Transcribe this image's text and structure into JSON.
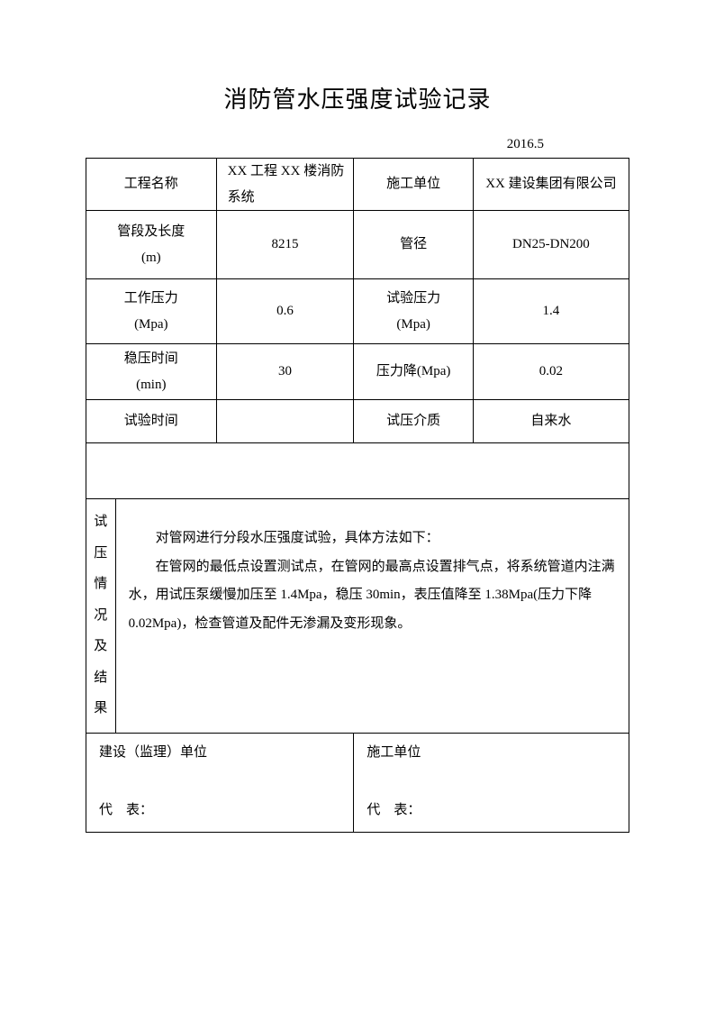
{
  "title": "消防管水压强度试验记录",
  "date": "2016.5",
  "labels": {
    "project_name": "工程名称",
    "contractor": "施工单位",
    "pipe_length": "管段及长度",
    "pipe_length_unit": "(m)",
    "pipe_diameter": "管径",
    "work_pressure": "工作压力",
    "work_pressure_unit": "(Mpa)",
    "test_pressure": "试验压力",
    "test_pressure_unit": "(Mpa)",
    "stable_time": "稳压时间",
    "stable_time_unit": "(min)",
    "pressure_drop": "压力降(Mpa)",
    "test_time": "试验时间",
    "test_medium": "试压介质",
    "result_label_1": "试",
    "result_label_2": "压",
    "result_label_3": "情",
    "result_label_4": "况",
    "result_label_5": "及",
    "result_label_6": "结",
    "result_label_7": "果",
    "supervisor": "建设（监理）单位",
    "contractor_sig": "施工单位",
    "rep": "代    表："
  },
  "values": {
    "project_name": "XX 工程 XX 楼消防系统",
    "contractor": "XX 建设集团有限公司",
    "pipe_length": "8215",
    "pipe_diameter": "DN25-DN200",
    "work_pressure": "0.6",
    "test_pressure": "1.4",
    "stable_time": "30",
    "pressure_drop": "0.02",
    "test_time": "",
    "test_medium": "自来水"
  },
  "description": {
    "line1": "对管网进行分段水压强度试验，具体方法如下：",
    "line2": "在管网的最低点设置测试点，在管网的最高点设置排气点，将系统管道内注满水，用试压泵缓慢加压至 1.4Mpa，稳压 30min，表压值降至 1.38Mpa(压力下降 0.02Mpa)，检查管道及配件无渗漏及变形现象。"
  },
  "colors": {
    "text": "#000000",
    "border": "#000000",
    "background": "#ffffff"
  },
  "fonts": {
    "title_size": 26,
    "body_size": 15,
    "family": "SimSun"
  }
}
